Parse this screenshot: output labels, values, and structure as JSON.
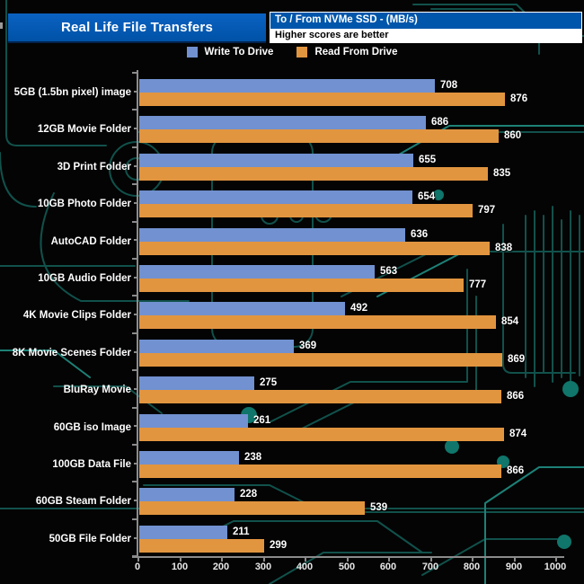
{
  "header": {
    "title": "Real Life File Transfers",
    "subtitle_line1": "To /  From NVMe  SSD - (MB/s)",
    "subtitle_line2": "Higher scores are better"
  },
  "legend": [
    {
      "label": "Write To  Drive",
      "color": "#7191d0"
    },
    {
      "label": "Read From  Drive",
      "color": "#e2953f"
    }
  ],
  "chart_data": {
    "type": "bar",
    "orientation": "horizontal",
    "title": "Real Life File Transfers",
    "subtitle": "To / From NVMe SSD - (MB/s)",
    "note": "Higher scores are better",
    "categories": [
      "5GB (1.5bn pixel) image",
      "12GB Movie Folder",
      "3D Print Folder",
      "10GB Photo Folder",
      "AutoCAD Folder",
      "10GB Audio Folder",
      "4K Movie Clips Folder",
      "8K Movie Scenes Folder",
      "BluRay Movie",
      "60GB iso Image",
      "100GB Data File",
      "60GB Steam Folder",
      "50GB File Folder"
    ],
    "series": [
      {
        "name": "Write To  Drive",
        "color": "#7191d0",
        "values": [
          708,
          686,
          655,
          654,
          636,
          563,
          492,
          369,
          275,
          261,
          238,
          228,
          211
        ]
      },
      {
        "name": "Read From  Drive",
        "color": "#e2953f",
        "values": [
          876,
          860,
          835,
          797,
          838,
          777,
          854,
          869,
          866,
          874,
          866,
          539,
          299
        ]
      }
    ],
    "xlim": [
      0,
      1000
    ],
    "xticks": [
      0,
      100,
      200,
      300,
      400,
      500,
      600,
      700,
      800,
      900,
      1000
    ],
    "value_labels": true,
    "legend_position": "top",
    "grid": false
  },
  "colors": {
    "background": "#040404",
    "title_bar_blue": "#0056ab",
    "bar_write": "#7191d0",
    "bar_read": "#e2953f",
    "axis_gray": "#8b8b8b",
    "circuit_teal": "#11514b",
    "circuit_teal_bright": "#1d8177",
    "text_white": "#ffffff"
  }
}
